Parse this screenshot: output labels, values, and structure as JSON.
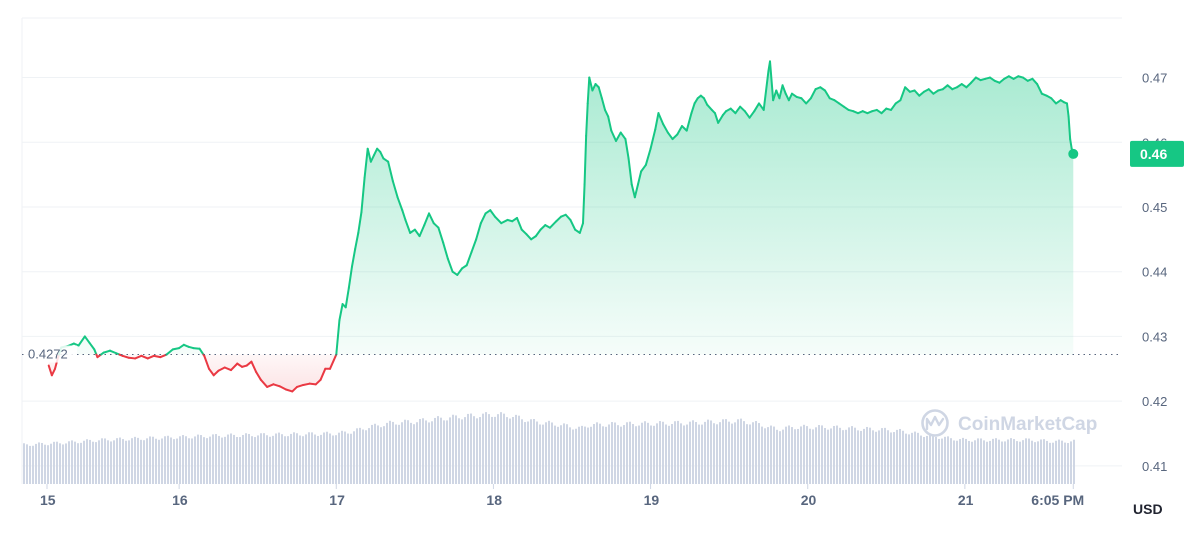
{
  "chart_data": {
    "type": "area",
    "currency_label": "USD",
    "watermark": "CoinMarketCap",
    "reference_label": "0.4272",
    "current_price_label": "0.46",
    "colors": {
      "up": "#16c784",
      "down": "#ea3943",
      "volume": "#cfd6e4",
      "grid": "#eff2f5",
      "badge": "#16c784"
    },
    "y_ticks": [
      "0.47",
      "0.46",
      "0.45",
      "0.44",
      "0.43",
      "0.42",
      "0.41"
    ],
    "x_ticks": [
      "15",
      "16",
      "17",
      "18",
      "19",
      "20",
      "21",
      "6:05 PM"
    ],
    "reference_value": 0.4272,
    "current_value": 0.4582,
    "ylim": [
      0.4072,
      0.4792
    ],
    "xlim": [
      15.0,
      22.0
    ],
    "price_series": [
      [
        15.17,
        0.4255
      ],
      [
        15.19,
        0.424
      ],
      [
        15.21,
        0.425
      ],
      [
        15.23,
        0.4268
      ],
      [
        15.25,
        0.4283
      ],
      [
        15.29,
        0.4285
      ],
      [
        15.33,
        0.4289
      ],
      [
        15.36,
        0.4286
      ],
      [
        15.4,
        0.43
      ],
      [
        15.43,
        0.429
      ],
      [
        15.46,
        0.428
      ],
      [
        15.48,
        0.4268
      ],
      [
        15.52,
        0.4275
      ],
      [
        15.56,
        0.4278
      ],
      [
        15.6,
        0.4274
      ],
      [
        15.64,
        0.427
      ],
      [
        15.68,
        0.4267
      ],
      [
        15.72,
        0.4266
      ],
      [
        15.76,
        0.427
      ],
      [
        15.8,
        0.4266
      ],
      [
        15.84,
        0.427
      ],
      [
        15.88,
        0.4268
      ],
      [
        15.92,
        0.4272
      ],
      [
        15.96,
        0.428
      ],
      [
        16.0,
        0.4282
      ],
      [
        16.03,
        0.4287
      ],
      [
        16.06,
        0.4284
      ],
      [
        16.09,
        0.4282
      ],
      [
        16.13,
        0.4281
      ],
      [
        16.16,
        0.427
      ],
      [
        16.19,
        0.425
      ],
      [
        16.22,
        0.424
      ],
      [
        16.25,
        0.4247
      ],
      [
        16.29,
        0.4252
      ],
      [
        16.33,
        0.4248
      ],
      [
        16.37,
        0.4258
      ],
      [
        16.4,
        0.4253
      ],
      [
        16.43,
        0.4255
      ],
      [
        16.46,
        0.4261
      ],
      [
        16.49,
        0.4245
      ],
      [
        16.52,
        0.4233
      ],
      [
        16.56,
        0.4222
      ],
      [
        16.6,
        0.4226
      ],
      [
        16.64,
        0.4223
      ],
      [
        16.68,
        0.4218
      ],
      [
        16.72,
        0.4215
      ],
      [
        16.75,
        0.4222
      ],
      [
        16.79,
        0.4225
      ],
      [
        16.83,
        0.4227
      ],
      [
        16.87,
        0.4226
      ],
      [
        16.9,
        0.4233
      ],
      [
        16.93,
        0.425
      ],
      [
        16.96,
        0.425
      ],
      [
        17.0,
        0.4272
      ],
      [
        17.02,
        0.4325
      ],
      [
        17.04,
        0.435
      ],
      [
        17.06,
        0.4345
      ],
      [
        17.08,
        0.4375
      ],
      [
        17.1,
        0.4408
      ],
      [
        17.12,
        0.4435
      ],
      [
        17.14,
        0.446
      ],
      [
        17.16,
        0.4492
      ],
      [
        17.18,
        0.4545
      ],
      [
        17.2,
        0.459
      ],
      [
        17.22,
        0.457
      ],
      [
        17.24,
        0.458
      ],
      [
        17.26,
        0.459
      ],
      [
        17.28,
        0.4585
      ],
      [
        17.3,
        0.4575
      ],
      [
        17.33,
        0.457
      ],
      [
        17.36,
        0.454
      ],
      [
        17.39,
        0.4515
      ],
      [
        17.42,
        0.4495
      ],
      [
        17.44,
        0.448
      ],
      [
        17.47,
        0.446
      ],
      [
        17.5,
        0.4465
      ],
      [
        17.53,
        0.4455
      ],
      [
        17.56,
        0.4472
      ],
      [
        17.59,
        0.449
      ],
      [
        17.62,
        0.4475
      ],
      [
        17.65,
        0.4468
      ],
      [
        17.68,
        0.4445
      ],
      [
        17.71,
        0.442
      ],
      [
        17.74,
        0.44
      ],
      [
        17.77,
        0.4395
      ],
      [
        17.8,
        0.4405
      ],
      [
        17.83,
        0.441
      ],
      [
        17.86,
        0.443
      ],
      [
        17.89,
        0.445
      ],
      [
        17.92,
        0.4475
      ],
      [
        17.95,
        0.449
      ],
      [
        17.98,
        0.4495
      ],
      [
        18.01,
        0.4485
      ],
      [
        18.05,
        0.4475
      ],
      [
        18.09,
        0.448
      ],
      [
        18.12,
        0.4478
      ],
      [
        18.15,
        0.4483
      ],
      [
        18.18,
        0.4465
      ],
      [
        18.21,
        0.4458
      ],
      [
        18.24,
        0.445
      ],
      [
        18.27,
        0.4455
      ],
      [
        18.3,
        0.4465
      ],
      [
        18.33,
        0.4472
      ],
      [
        18.36,
        0.4468
      ],
      [
        18.4,
        0.4478
      ],
      [
        18.43,
        0.4485
      ],
      [
        18.46,
        0.4488
      ],
      [
        18.49,
        0.448
      ],
      [
        18.52,
        0.4465
      ],
      [
        18.55,
        0.446
      ],
      [
        18.57,
        0.4475
      ],
      [
        18.58,
        0.4535
      ],
      [
        18.59,
        0.461
      ],
      [
        18.6,
        0.466
      ],
      [
        18.61,
        0.47
      ],
      [
        18.63,
        0.468
      ],
      [
        18.65,
        0.469
      ],
      [
        18.67,
        0.4685
      ],
      [
        18.69,
        0.4668
      ],
      [
        18.71,
        0.465
      ],
      [
        18.73,
        0.464
      ],
      [
        18.75,
        0.4618
      ],
      [
        18.78,
        0.4602
      ],
      [
        18.81,
        0.4615
      ],
      [
        18.84,
        0.4605
      ],
      [
        18.86,
        0.4575
      ],
      [
        18.88,
        0.4535
      ],
      [
        18.9,
        0.4515
      ],
      [
        18.92,
        0.4535
      ],
      [
        18.94,
        0.4555
      ],
      [
        18.97,
        0.4565
      ],
      [
        19.0,
        0.459
      ],
      [
        19.03,
        0.462
      ],
      [
        19.05,
        0.4645
      ],
      [
        19.08,
        0.4628
      ],
      [
        19.11,
        0.4615
      ],
      [
        19.14,
        0.4605
      ],
      [
        19.17,
        0.4612
      ],
      [
        19.2,
        0.4625
      ],
      [
        19.23,
        0.4618
      ],
      [
        19.26,
        0.4645
      ],
      [
        19.28,
        0.466
      ],
      [
        19.3,
        0.4668
      ],
      [
        19.32,
        0.4672
      ],
      [
        19.34,
        0.4668
      ],
      [
        19.36,
        0.4658
      ],
      [
        19.39,
        0.465
      ],
      [
        19.41,
        0.4645
      ],
      [
        19.43,
        0.463
      ],
      [
        19.46,
        0.4642
      ],
      [
        19.48,
        0.4648
      ],
      [
        19.51,
        0.4652
      ],
      [
        19.54,
        0.4645
      ],
      [
        19.57,
        0.4655
      ],
      [
        19.6,
        0.4648
      ],
      [
        19.63,
        0.4638
      ],
      [
        19.66,
        0.4648
      ],
      [
        19.69,
        0.466
      ],
      [
        19.72,
        0.465
      ],
      [
        19.75,
        0.471
      ],
      [
        19.76,
        0.4725
      ],
      [
        19.78,
        0.4665
      ],
      [
        19.8,
        0.468
      ],
      [
        19.82,
        0.4668
      ],
      [
        19.84,
        0.4688
      ],
      [
        19.86,
        0.4675
      ],
      [
        19.88,
        0.4665
      ],
      [
        19.9,
        0.4675
      ],
      [
        19.93,
        0.467
      ],
      [
        19.96,
        0.4668
      ],
      [
        19.99,
        0.466
      ],
      [
        20.02,
        0.4668
      ],
      [
        20.05,
        0.4682
      ],
      [
        20.08,
        0.4685
      ],
      [
        20.11,
        0.468
      ],
      [
        20.14,
        0.4668
      ],
      [
        20.17,
        0.4665
      ],
      [
        20.2,
        0.466
      ],
      [
        20.23,
        0.4655
      ],
      [
        20.26,
        0.465
      ],
      [
        20.29,
        0.4648
      ],
      [
        20.32,
        0.4645
      ],
      [
        20.35,
        0.4648
      ],
      [
        20.38,
        0.4645
      ],
      [
        20.41,
        0.4648
      ],
      [
        20.44,
        0.465
      ],
      [
        20.47,
        0.4645
      ],
      [
        20.5,
        0.4652
      ],
      [
        20.53,
        0.465
      ],
      [
        20.56,
        0.466
      ],
      [
        20.59,
        0.4665
      ],
      [
        20.62,
        0.4685
      ],
      [
        20.65,
        0.4678
      ],
      [
        20.68,
        0.468
      ],
      [
        20.71,
        0.4672
      ],
      [
        20.74,
        0.4678
      ],
      [
        20.77,
        0.4682
      ],
      [
        20.8,
        0.4675
      ],
      [
        20.83,
        0.468
      ],
      [
        20.86,
        0.4682
      ],
      [
        20.89,
        0.4688
      ],
      [
        20.92,
        0.4682
      ],
      [
        20.95,
        0.4685
      ],
      [
        20.98,
        0.469
      ],
      [
        21.01,
        0.4685
      ],
      [
        21.04,
        0.4692
      ],
      [
        21.07,
        0.47
      ],
      [
        21.1,
        0.4696
      ],
      [
        21.13,
        0.4698
      ],
      [
        21.16,
        0.47
      ],
      [
        21.19,
        0.4695
      ],
      [
        21.22,
        0.4692
      ],
      [
        21.25,
        0.4698
      ],
      [
        21.28,
        0.4702
      ],
      [
        21.31,
        0.4698
      ],
      [
        21.34,
        0.4702
      ],
      [
        21.37,
        0.47
      ],
      [
        21.4,
        0.4695
      ],
      [
        21.43,
        0.4698
      ],
      [
        21.46,
        0.469
      ],
      [
        21.49,
        0.4675
      ],
      [
        21.52,
        0.4672
      ],
      [
        21.55,
        0.4668
      ],
      [
        21.58,
        0.466
      ],
      [
        21.61,
        0.4665
      ],
      [
        21.63,
        0.4662
      ],
      [
        21.65,
        0.466
      ],
      [
        21.66,
        0.464
      ],
      [
        21.67,
        0.4605
      ],
      [
        21.68,
        0.459
      ],
      [
        21.69,
        0.4582
      ]
    ],
    "volume_series": [
      [
        15.0,
        0.55
      ],
      [
        15.25,
        0.58
      ],
      [
        15.5,
        0.62
      ],
      [
        15.75,
        0.64
      ],
      [
        16.0,
        0.66
      ],
      [
        16.25,
        0.68
      ],
      [
        16.5,
        0.69
      ],
      [
        16.75,
        0.7
      ],
      [
        17.0,
        0.71
      ],
      [
        17.1,
        0.74
      ],
      [
        17.2,
        0.8
      ],
      [
        17.35,
        0.86
      ],
      [
        17.5,
        0.88
      ],
      [
        17.65,
        0.92
      ],
      [
        17.8,
        0.95
      ],
      [
        18.0,
        0.98
      ],
      [
        18.1,
        0.96
      ],
      [
        18.25,
        0.88
      ],
      [
        18.4,
        0.84
      ],
      [
        18.5,
        0.8
      ],
      [
        18.55,
        0.78
      ],
      [
        18.6,
        0.83
      ],
      [
        18.75,
        0.84
      ],
      [
        19.0,
        0.85
      ],
      [
        19.25,
        0.86
      ],
      [
        19.45,
        0.88
      ],
      [
        19.55,
        0.89
      ],
      [
        19.65,
        0.86
      ],
      [
        19.75,
        0.8
      ],
      [
        19.8,
        0.77
      ],
      [
        19.9,
        0.8
      ],
      [
        20.1,
        0.8
      ],
      [
        20.3,
        0.78
      ],
      [
        20.5,
        0.76
      ],
      [
        20.6,
        0.74
      ],
      [
        20.7,
        0.7
      ],
      [
        20.8,
        0.67
      ],
      [
        20.9,
        0.64
      ],
      [
        21.0,
        0.62
      ],
      [
        21.2,
        0.62
      ],
      [
        21.4,
        0.62
      ],
      [
        21.55,
        0.6
      ],
      [
        21.69,
        0.6
      ]
    ]
  }
}
